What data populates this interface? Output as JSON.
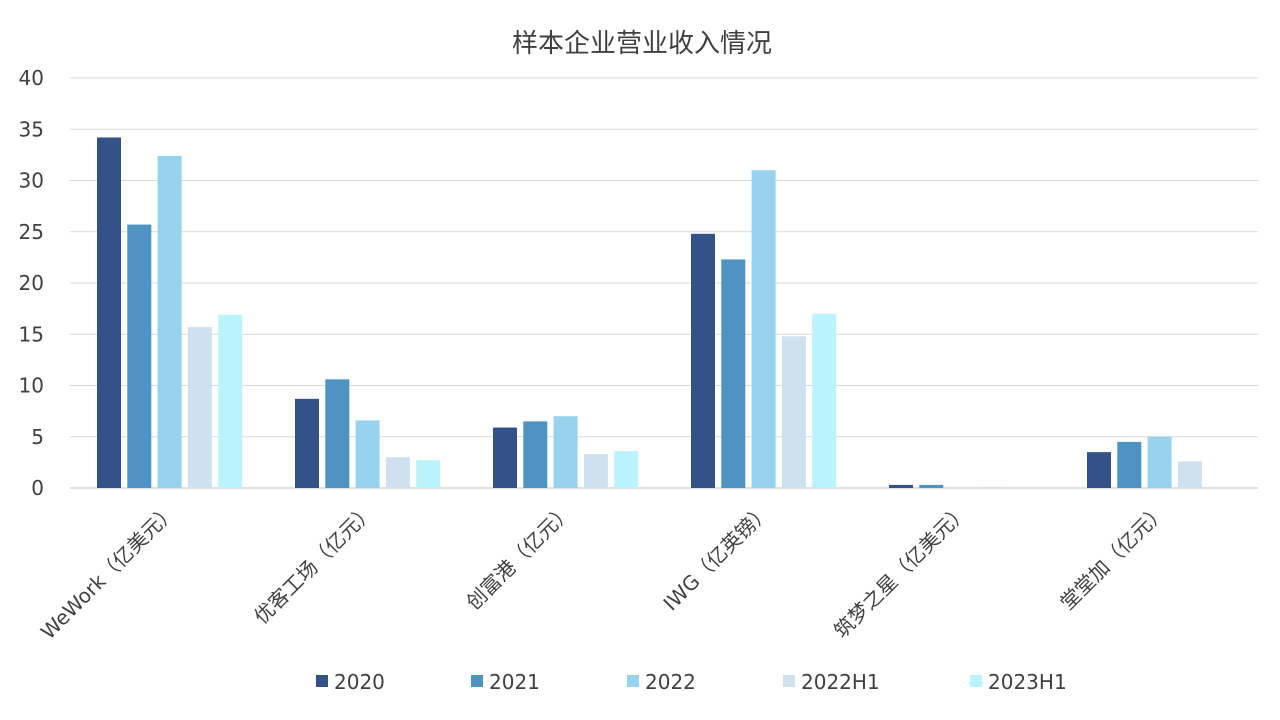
{
  "chart_data": {
    "type": "bar",
    "title": "样本企业营业收入情况",
    "xlabel": "",
    "ylabel": "",
    "ylim": [
      0,
      40
    ],
    "yticks": [
      0,
      5,
      10,
      15,
      20,
      25,
      30,
      35,
      40
    ],
    "grid": true,
    "legend_position": "bottom",
    "categories": [
      "WeWork（亿美元）",
      "优客工场（亿元）",
      "创富港（亿元）",
      "IWG（亿英镑）",
      "筑梦之星（亿美元）",
      "堂堂加（亿元）"
    ],
    "series": [
      {
        "name": "2020",
        "color": "#335288",
        "values": [
          34.2,
          8.7,
          5.9,
          24.8,
          0.3,
          3.5
        ]
      },
      {
        "name": "2021",
        "color": "#4f93c3",
        "values": [
          25.7,
          10.6,
          6.5,
          22.3,
          0.3,
          4.5
        ]
      },
      {
        "name": "2022",
        "color": "#97d2ef",
        "values": [
          32.4,
          6.6,
          7.0,
          31.0,
          0.0,
          5.0
        ]
      },
      {
        "name": "2022H1",
        "color": "#cfe1ee",
        "values": [
          15.7,
          3.0,
          3.3,
          14.8,
          0.1,
          2.6
        ]
      },
      {
        "name": "2023H1",
        "color": "#baf3fb",
        "values": [
          16.9,
          2.7,
          3.6,
          17.0,
          null,
          null
        ]
      }
    ]
  }
}
